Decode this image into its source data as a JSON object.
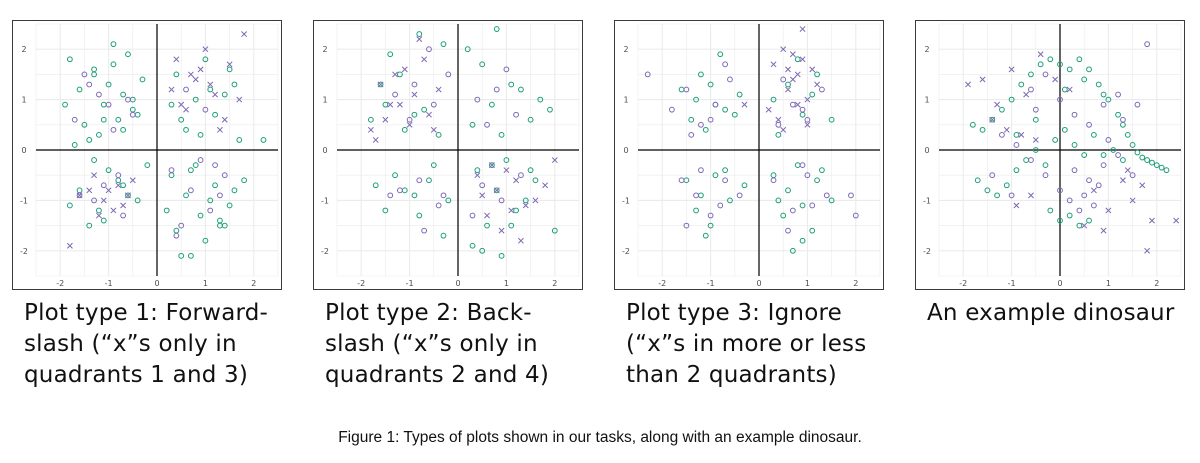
{
  "figure_caption": "Figure 1: Types of plots shown in our tasks, along with an example dinosaur.",
  "colors": {
    "circle": "#1a9e77",
    "cross": "#7d68b3",
    "circle_alt": "#7d68b3",
    "grid": "#ebebeb",
    "axis": "#000000",
    "tick_text": "#4d4d4d"
  },
  "chart_data": [
    {
      "type": "scatter",
      "title": "Plot type 1: Forward-slash (“x”s only in quadrants 1 and 3)",
      "xlim": [
        -2.5,
        2.5
      ],
      "ylim": [
        -2.5,
        2.5
      ],
      "xticks": [
        -2,
        -1,
        0,
        1,
        2
      ],
      "yticks": [
        -2,
        -1,
        0,
        1,
        2
      ],
      "grid": true,
      "series": [
        {
          "marker": "circle",
          "color": "#1a9e77",
          "x": [
            -1.8,
            -1.6,
            -1.3,
            -1.1,
            -0.9,
            -0.7,
            -0.5,
            -0.3,
            -1.5,
            -1.2,
            -0.8,
            -0.6,
            -1.9,
            -1.4,
            -1.0,
            -0.4,
            -1.7,
            -1.3,
            -0.9,
            -0.5,
            -1.1,
            -0.7,
            0.3,
            0.6,
            0.9,
            1.2,
            1.5,
            1.8,
            0.4,
            0.8,
            1.1,
            1.4,
            0.5,
            1.0,
            1.6,
            0.2,
            0.7,
            1.3,
            -1.6,
            -1.2,
            -0.8,
            -0.4,
            -1.4,
            -1.0,
            -0.6,
            -0.2,
            -1.8,
            -1.1,
            -0.7,
            -1.3,
            0.4,
            0.8,
            1.2,
            1.6,
            0.6,
            1.0,
            1.4,
            0.3,
            0.9,
            1.5,
            0.5,
            1.1,
            1.7,
            2.2,
            0.7,
            1.3
          ],
          "y": [
            1.8,
            1.2,
            1.5,
            0.9,
            1.7,
            1.1,
            0.8,
            1.4,
            0.5,
            0.3,
            0.6,
            1.9,
            0.9,
            0.2,
            1.3,
            0.7,
            0.1,
            1.6,
            2.1,
            1.0,
            0.6,
            0.4,
            -0.5,
            -0.9,
            -1.3,
            -0.7,
            -1.1,
            -0.6,
            -1.6,
            -0.3,
            -1.0,
            -1.5,
            -2.1,
            -1.8,
            -0.8,
            -1.2,
            -0.4,
            -1.4,
            -0.8,
            -1.2,
            -0.6,
            -1.0,
            -1.5,
            -0.4,
            -0.9,
            -0.3,
            -1.1,
            -1.4,
            -0.7,
            -0.2,
            1.5,
            1.0,
            0.7,
            1.3,
            0.4,
            1.8,
            1.1,
            0.9,
            0.3,
            1.6,
            0.6,
            1.2,
            0.2,
            0.2,
            -2.1,
            -1.5
          ]
        },
        {
          "marker": "circle",
          "color": "#7d68b3",
          "x": [
            -1.4,
            -1.0,
            -0.6,
            -1.7,
            -1.2,
            -0.9,
            -0.5,
            -1.5,
            0.3,
            0.7,
            1.1,
            1.4,
            0.5,
            0.9,
            1.3,
            -1.1,
            -0.7,
            -1.3,
            0.6,
            1.0,
            -0.8,
            -1.6,
            0.4,
            1.2
          ],
          "y": [
            1.3,
            0.9,
            1.0,
            0.6,
            1.1,
            0.4,
            0.7,
            1.5,
            -0.4,
            -0.8,
            -1.2,
            -0.5,
            -1.5,
            -0.2,
            -0.9,
            -0.7,
            -1.3,
            -1.0,
            1.2,
            0.8,
            -0.5,
            -0.9,
            -1.7,
            -0.3
          ]
        },
        {
          "marker": "cross",
          "color": "#7d68b3",
          "x": [
            0.4,
            0.8,
            1.2,
            1.5,
            0.6,
            1.0,
            1.4,
            1.8,
            0.3,
            0.9,
            1.3,
            0.5,
            1.1,
            1.7,
            0.7,
            -1.4,
            -1.1,
            -0.8,
            -1.6,
            -1.2,
            -0.9,
            -0.5,
            -1.3,
            -1.0,
            -0.7,
            -1.8,
            -0.6
          ],
          "y": [
            1.8,
            1.4,
            1.1,
            1.7,
            0.8,
            2.0,
            0.6,
            2.3,
            1.2,
            1.6,
            0.4,
            0.9,
            1.3,
            1.0,
            1.5,
            -0.8,
            -1.0,
            -0.7,
            -0.9,
            -1.3,
            -1.2,
            -0.6,
            -0.5,
            -0.8,
            -1.1,
            -1.9,
            -0.9
          ]
        }
      ]
    },
    {
      "type": "scatter",
      "title": "Plot type 2: Back-slash (“x”s only in quadrants 2 and 4)",
      "xlim": [
        -2.5,
        2.5
      ],
      "ylim": [
        -2.5,
        2.5
      ],
      "xticks": [
        -2,
        -1,
        0,
        1,
        2
      ],
      "yticks": [
        -2,
        -1,
        0,
        1,
        2
      ],
      "grid": true,
      "series": [
        {
          "marker": "circle",
          "color": "#1a9e77",
          "x": [
            -1.8,
            -1.5,
            -1.1,
            -0.7,
            -0.4,
            -1.6,
            -1.2,
            -0.9,
            -0.3,
            -1.4,
            -0.8,
            0.3,
            0.7,
            1.1,
            1.5,
            1.9,
            0.5,
            0.9,
            1.3,
            0.2,
            0.8,
            1.7,
            -1.7,
            -1.3,
            -0.9,
            -0.5,
            -1.5,
            -1.1,
            -0.6,
            -0.2,
            0.4,
            0.8,
            1.2,
            1.6,
            2.0,
            0.6,
            1.0,
            1.4,
            0.3,
            0.9,
            1.5,
            -0.3,
            0.5,
            1.1,
            -0.8,
            0.7
          ],
          "y": [
            0.6,
            0.9,
            0.4,
            0.8,
            0.3,
            1.3,
            1.5,
            0.7,
            2.1,
            1.9,
            2.3,
            0.5,
            0.9,
            1.3,
            0.6,
            0.8,
            1.7,
            0.3,
            1.2,
            2.0,
            2.4,
            1.0,
            -0.7,
            -0.5,
            -0.9,
            -0.3,
            -1.2,
            -0.8,
            -0.6,
            -1.0,
            -0.4,
            -0.8,
            -1.2,
            -0.6,
            -1.6,
            -1.5,
            -0.2,
            -1.0,
            -1.9,
            -2.1,
            -0.4,
            -1.7,
            -2.0,
            -1.5,
            -1.3,
            -0.3
          ]
        },
        {
          "marker": "circle",
          "color": "#7d68b3",
          "x": [
            -1.3,
            -0.9,
            -0.5,
            -0.2,
            -1.0,
            -0.6,
            0.4,
            0.8,
            1.2,
            0.6,
            1.0,
            -1.2,
            -0.8,
            -0.4,
            -1.4,
            0.5,
            0.9,
            1.3,
            0.3,
            -0.7,
            -0.3
          ],
          "y": [
            1.1,
            1.3,
            0.9,
            1.5,
            0.6,
            2.0,
            1.0,
            1.2,
            0.7,
            0.5,
            1.6,
            -0.8,
            -0.6,
            -1.1,
            -0.9,
            -0.7,
            -1.0,
            -0.5,
            -1.3,
            -1.6,
            -0.9
          ]
        },
        {
          "marker": "cross",
          "color": "#7d68b3",
          "x": [
            -1.8,
            -1.5,
            -1.2,
            -0.9,
            -0.6,
            -1.6,
            -1.3,
            -1.0,
            -0.7,
            -1.4,
            -0.8,
            -0.5,
            -1.1,
            -1.7,
            -0.4,
            0.4,
            0.8,
            1.2,
            1.6,
            2.0,
            0.6,
            1.0,
            1.4,
            1.8,
            0.5,
            0.9,
            1.3,
            1.1,
            0.7
          ],
          "y": [
            0.4,
            0.6,
            0.9,
            1.1,
            0.7,
            1.3,
            1.5,
            0.5,
            1.8,
            0.9,
            2.2,
            0.4,
            1.6,
            0.2,
            1.2,
            -0.5,
            -0.8,
            -0.6,
            -1.0,
            -0.2,
            -1.3,
            -0.4,
            -1.1,
            -0.7,
            -0.9,
            -1.6,
            -1.8,
            -1.2,
            -0.3
          ]
        }
      ]
    },
    {
      "type": "scatter",
      "title": "Plot type 3: Ignore (“x”s in more or less than 2 quadrants)",
      "xlim": [
        -2.5,
        2.5
      ],
      "ylim": [
        -2.5,
        2.5
      ],
      "xticks": [
        -2,
        -1,
        0,
        1,
        2
      ],
      "yticks": [
        -2,
        -1,
        0,
        1,
        2
      ],
      "grid": true,
      "series": [
        {
          "marker": "circle",
          "color": "#1a9e77",
          "x": [
            -1.6,
            -1.3,
            -1.0,
            -0.7,
            -0.4,
            -1.4,
            -1.1,
            -0.8,
            -0.5,
            -1.2,
            -0.9,
            0.3,
            0.6,
            0.9,
            1.2,
            1.5,
            0.4,
            0.8,
            1.1,
            -1.5,
            -1.2,
            -0.9,
            -0.6,
            -0.3,
            -1.3,
            -1.0,
            -0.7,
            -1.1,
            0.3,
            0.6,
            0.9,
            1.2,
            1.5,
            0.5,
            0.8,
            1.1,
            0.4,
            0.9,
            1.3,
            0.7
          ],
          "y": [
            1.2,
            1.0,
            1.3,
            0.8,
            1.1,
            0.6,
            0.4,
            1.9,
            0.7,
            1.5,
            0.9,
            1.0,
            1.3,
            0.7,
            1.5,
            0.6,
            0.3,
            1.8,
            1.1,
            -0.6,
            -0.9,
            -0.5,
            -1.0,
            -0.7,
            -1.2,
            -1.5,
            -0.4,
            -1.7,
            -0.5,
            -0.8,
            -1.1,
            -0.6,
            -1.0,
            -1.3,
            -0.3,
            -1.6,
            -1.0,
            -1.8,
            -0.4,
            -2.0
          ]
        },
        {
          "marker": "circle",
          "color": "#7d68b3",
          "x": [
            -2.3,
            -1.8,
            -1.5,
            -1.2,
            -0.9,
            -0.6,
            -1.4,
            -1.0,
            -0.7,
            0.4,
            0.7,
            1.0,
            1.3,
            0.5,
            0.9,
            -1.6,
            -1.3,
            -1.0,
            -0.7,
            -0.4,
            -1.2,
            -0.8,
            -1.5,
            0.3,
            0.7,
            1.0,
            1.4,
            1.9,
            2.0,
            0.6,
            1.1,
            0.9
          ],
          "y": [
            1.5,
            0.8,
            1.2,
            0.5,
            0.9,
            1.4,
            0.3,
            0.6,
            1.7,
            0.5,
            0.9,
            0.6,
            1.2,
            1.4,
            0.8,
            -0.6,
            -0.9,
            -1.3,
            -0.6,
            -0.9,
            -0.4,
            -1.1,
            -1.5,
            -0.6,
            -1.2,
            -0.5,
            -0.9,
            -0.9,
            -1.3,
            -1.6,
            -1.1,
            -0.3
          ]
        },
        {
          "marker": "cross",
          "color": "#7d68b3",
          "x": [
            0.3,
            0.5,
            0.7,
            0.9,
            1.1,
            0.6,
            0.8,
            1.0,
            0.4,
            0.9,
            1.2,
            0.5,
            0.7,
            0.2,
            1.0,
            0.8,
            -0.3,
            0.6
          ],
          "y": [
            1.7,
            2.0,
            1.4,
            1.8,
            1.6,
            1.2,
            0.9,
            1.0,
            0.6,
            2.4,
            1.3,
            0.4,
            1.9,
            0.8,
            0.5,
            1.5,
            0.9,
            1.6
          ]
        }
      ]
    },
    {
      "type": "scatter",
      "title": "An example dinosaur",
      "xlim": [
        -2.5,
        2.5
      ],
      "ylim": [
        -2.5,
        2.5
      ],
      "xticks": [
        -2,
        -1,
        0,
        1,
        2
      ],
      "yticks": [
        -2,
        -1,
        0,
        1,
        2
      ],
      "grid": true,
      "series": [
        {
          "marker": "circle",
          "color": "#1a9e77",
          "x": [
            -0.8,
            -0.6,
            -0.4,
            -0.2,
            0.0,
            0.2,
            0.4,
            0.6,
            0.8,
            1.0,
            1.2,
            1.3,
            1.4,
            1.5,
            1.6,
            1.7,
            1.8,
            1.9,
            2.0,
            2.1,
            2.2,
            -1.0,
            -1.2,
            -1.4,
            -1.6,
            -1.8,
            -0.9,
            -0.5,
            0.1,
            0.5,
            0.9,
            -1.7,
            -1.5,
            -1.3,
            -1.1,
            -0.9,
            -0.7,
            -0.5,
            -0.3,
            -0.1,
            0.1,
            0.3,
            0.5,
            0.7,
            0.9,
            1.1,
            1.3,
            -0.2,
            0.0,
            0.2,
            0.4,
            0.6
          ],
          "y": [
            1.3,
            1.5,
            1.7,
            1.8,
            1.7,
            1.6,
            1.8,
            1.6,
            1.3,
            1.0,
            0.7,
            0.5,
            0.3,
            0.1,
            -0.05,
            -0.15,
            -0.2,
            -0.25,
            -0.3,
            -0.35,
            -0.4,
            1.0,
            0.8,
            0.6,
            0.4,
            0.5,
            0.3,
            0.6,
            1.2,
            1.4,
            1.1,
            -0.6,
            -0.8,
            -0.9,
            -0.7,
            -0.4,
            -0.2,
            0.0,
            -0.3,
            0.2,
            0.4,
            0.1,
            -0.1,
            0.3,
            -0.1,
            0.0,
            -0.2,
            -1.2,
            -1.4,
            -1.3,
            -1.5,
            -1.4
          ]
        },
        {
          "marker": "circle",
          "color": "#7d68b3",
          "x": [
            -0.6,
            -0.3,
            0.0,
            0.3,
            0.6,
            0.9,
            1.2,
            -1.2,
            -0.9,
            -0.6,
            -0.3,
            0.0,
            0.3,
            0.6,
            0.9,
            1.2,
            1.5,
            -1.4,
            -1.0,
            -0.5,
            0.2,
            0.5,
            0.8,
            1.0,
            1.3,
            1.6,
            0.4,
            0.7,
            1.8
          ],
          "y": [
            1.2,
            1.5,
            1.0,
            0.7,
            0.5,
            0.9,
            1.1,
            0.3,
            0.1,
            -0.2,
            -0.5,
            -0.8,
            -0.4,
            -0.6,
            -0.3,
            -0.1,
            -0.5,
            -0.5,
            -0.9,
            0.8,
            -1.0,
            -0.9,
            -0.7,
            0.2,
            0.6,
            0.9,
            -1.2,
            -1.1,
            2.1
          ]
        },
        {
          "marker": "cross",
          "color": "#7d68b3",
          "x": [
            -1.9,
            -1.6,
            -1.3,
            -1.0,
            -0.7,
            -0.4,
            -0.1,
            0.2,
            -1.1,
            -0.8,
            -0.5,
            -1.4,
            0.7,
            1.0,
            1.3,
            1.5,
            1.7,
            1.9,
            2.4,
            1.8,
            1.4,
            0.5,
            0.9,
            -0.9,
            -0.6
          ],
          "y": [
            1.3,
            1.4,
            0.9,
            1.6,
            1.1,
            1.9,
            1.4,
            1.2,
            0.4,
            0.3,
            0.2,
            0.6,
            -0.8,
            -1.2,
            -0.6,
            -1.0,
            -0.7,
            -1.4,
            -1.4,
            -2.0,
            -0.4,
            -1.5,
            -1.6,
            -1.1,
            -0.9
          ]
        }
      ]
    }
  ]
}
